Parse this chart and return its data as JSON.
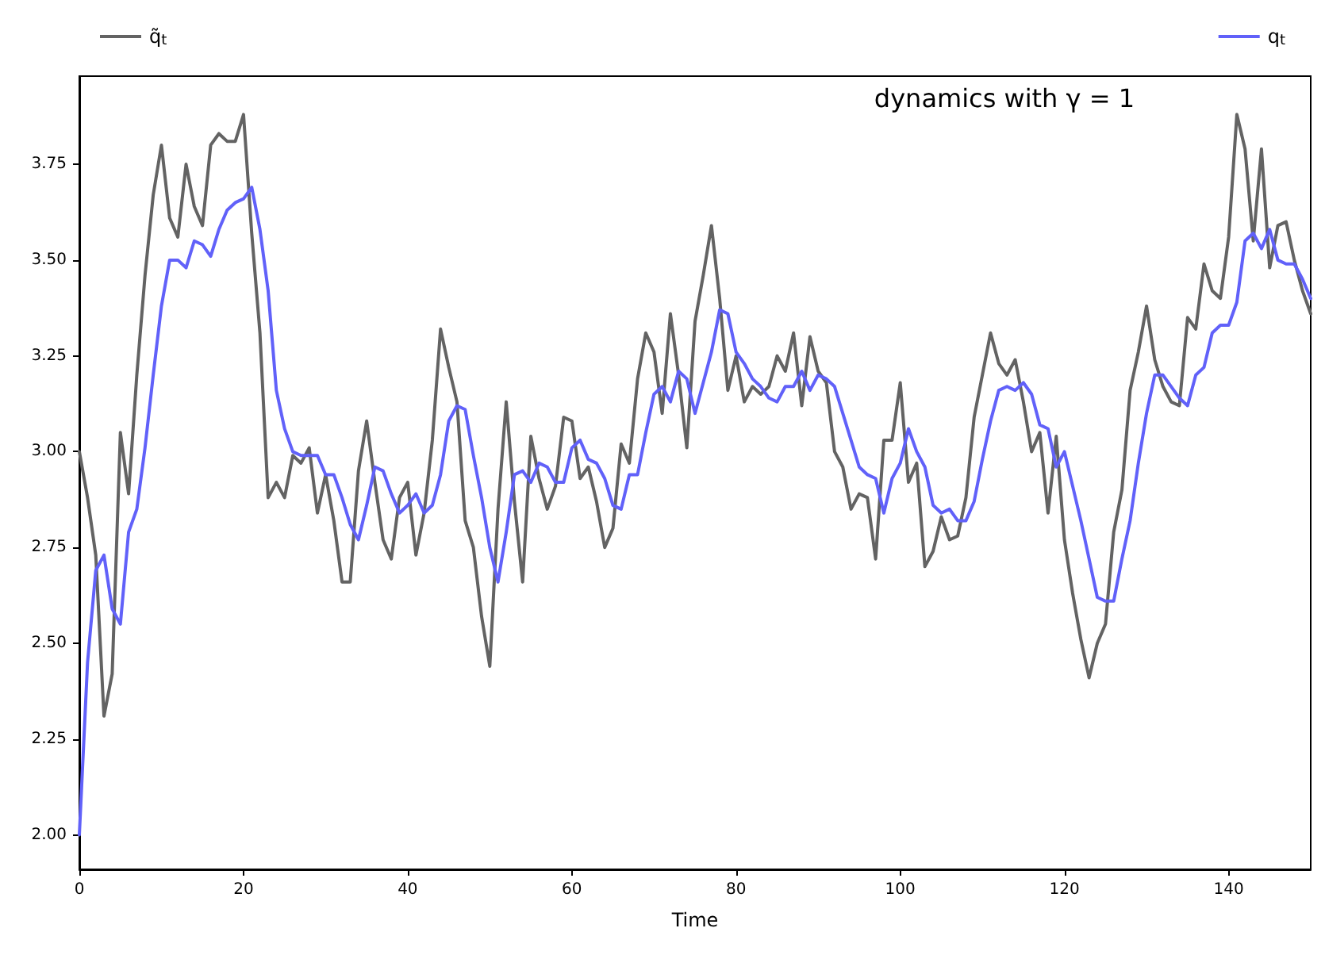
{
  "chart_data": {
    "type": "line",
    "xlabel": "Time",
    "annotations": [
      "dynamics with γ = 1"
    ],
    "x": [
      0,
      1,
      2,
      3,
      4,
      5,
      6,
      7,
      8,
      9,
      10,
      11,
      12,
      13,
      14,
      15,
      16,
      17,
      18,
      19,
      20,
      21,
      22,
      23,
      24,
      25,
      26,
      27,
      28,
      29,
      30,
      31,
      32,
      33,
      34,
      35,
      36,
      37,
      38,
      39,
      40,
      41,
      42,
      43,
      44,
      45,
      46,
      47,
      48,
      49,
      50,
      51,
      52,
      53,
      54,
      55,
      56,
      57,
      58,
      59,
      60,
      61,
      62,
      63,
      64,
      65,
      66,
      67,
      68,
      69,
      70,
      71,
      72,
      73,
      74,
      75,
      76,
      77,
      78,
      79,
      80,
      81,
      82,
      83,
      84,
      85,
      86,
      87,
      88,
      89,
      90,
      91,
      92,
      93,
      94,
      95,
      96,
      97,
      98,
      99,
      100,
      101,
      102,
      103,
      104,
      105,
      106,
      107,
      108,
      109,
      110,
      111,
      112,
      113,
      114,
      115,
      116,
      117,
      118,
      119,
      120,
      121,
      122,
      123,
      124,
      125,
      126,
      127,
      128,
      129,
      130,
      131,
      132,
      133,
      134,
      135,
      136,
      137,
      138,
      139,
      140,
      141,
      142,
      143,
      144,
      145,
      146,
      147,
      148,
      149,
      150
    ],
    "series": [
      {
        "name": "q̃$_{t}$",
        "color": "#636363",
        "values": [
          3.0,
          2.88,
          2.73,
          2.31,
          2.42,
          3.05,
          2.89,
          3.2,
          3.46,
          3.67,
          3.8,
          3.61,
          3.56,
          3.75,
          3.64,
          3.59,
          3.8,
          3.83,
          3.81,
          3.81,
          3.88,
          3.57,
          3.31,
          2.88,
          2.92,
          2.88,
          2.99,
          2.97,
          3.01,
          2.84,
          2.94,
          2.82,
          2.66,
          2.66,
          2.95,
          3.08,
          2.92,
          2.77,
          2.72,
          2.88,
          2.92,
          2.73,
          2.84,
          3.03,
          3.32,
          3.22,
          3.13,
          2.82,
          2.75,
          2.57,
          2.44,
          2.85,
          3.13,
          2.87,
          2.66,
          3.04,
          2.93,
          2.85,
          2.91,
          3.09,
          3.08,
          2.93,
          2.96,
          2.87,
          2.75,
          2.8,
          3.02,
          2.97,
          3.19,
          3.31,
          3.26,
          3.1,
          3.36,
          3.2,
          3.01,
          3.34,
          3.46,
          3.59,
          3.4,
          3.16,
          3.25,
          3.13,
          3.17,
          3.15,
          3.17,
          3.25,
          3.21,
          3.31,
          3.12,
          3.3,
          3.21,
          3.18,
          3.0,
          2.96,
          2.85,
          2.89,
          2.88,
          2.72,
          3.03,
          3.03,
          3.18,
          2.92,
          2.97,
          2.7,
          2.74,
          2.83,
          2.77,
          2.78,
          2.88,
          3.09,
          3.2,
          3.31,
          3.23,
          3.2,
          3.24,
          3.13,
          3.0,
          3.05,
          2.84,
          3.04,
          2.77,
          2.63,
          2.51,
          2.41,
          2.5,
          2.55,
          2.79,
          2.9,
          3.16,
          3.26,
          3.38,
          3.24,
          3.17,
          3.13,
          3.12,
          3.35,
          3.32,
          3.49,
          3.42,
          3.4,
          3.56,
          3.88,
          3.79,
          3.55,
          3.79,
          3.48,
          3.59,
          3.6,
          3.5,
          3.42,
          3.36
        ]
      },
      {
        "name": "q$_{t}$",
        "color": "#6161f9",
        "values": [
          2.0,
          2.45,
          2.69,
          2.73,
          2.59,
          2.55,
          2.79,
          2.85,
          3.01,
          3.2,
          3.38,
          3.5,
          3.5,
          3.48,
          3.55,
          3.54,
          3.51,
          3.58,
          3.63,
          3.65,
          3.66,
          3.69,
          3.58,
          3.42,
          3.16,
          3.06,
          3.0,
          2.99,
          2.99,
          2.99,
          2.94,
          2.94,
          2.88,
          2.81,
          2.77,
          2.86,
          2.96,
          2.95,
          2.89,
          2.84,
          2.86,
          2.89,
          2.84,
          2.86,
          2.94,
          3.08,
          3.12,
          3.11,
          2.99,
          2.88,
          2.75,
          2.66,
          2.79,
          2.94,
          2.95,
          2.92,
          2.97,
          2.96,
          2.92,
          2.92,
          3.01,
          3.03,
          2.98,
          2.97,
          2.93,
          2.86,
          2.85,
          2.94,
          2.94,
          3.05,
          3.15,
          3.17,
          3.13,
          3.21,
          3.19,
          3.1,
          3.18,
          3.26,
          3.37,
          3.36,
          3.26,
          3.23,
          3.19,
          3.17,
          3.14,
          3.13,
          3.17,
          3.17,
          3.21,
          3.16,
          3.2,
          3.19,
          3.17,
          3.1,
          3.03,
          2.96,
          2.94,
          2.93,
          2.84,
          2.93,
          2.97,
          3.06,
          3.0,
          2.96,
          2.86,
          2.84,
          2.85,
          2.82,
          2.82,
          2.87,
          2.98,
          3.08,
          3.16,
          3.17,
          3.16,
          3.18,
          3.15,
          3.07,
          3.06,
          2.96,
          3.0,
          2.91,
          2.82,
          2.72,
          2.62,
          2.61,
          2.61,
          2.72,
          2.82,
          2.97,
          3.1,
          3.2,
          3.2,
          3.17,
          3.14,
          3.12,
          3.2,
          3.22,
          3.31,
          3.33,
          3.33,
          3.39,
          3.55,
          3.57,
          3.53,
          3.58,
          3.5,
          3.49,
          3.49,
          3.45,
          3.4
        ]
      }
    ],
    "xlim": [
      0,
      150
    ],
    "xticks": [
      0,
      20,
      40,
      60,
      80,
      100,
      120,
      140
    ],
    "ylim": [
      1.91,
      3.98
    ],
    "yticks": [
      {
        "value": 2,
        "label": "2.00"
      },
      {
        "value": 2.25,
        "label": "2.25"
      },
      {
        "value": 2.5,
        "label": "2.50"
      },
      {
        "value": 2.75,
        "label": "2.75"
      },
      {
        "value": 3,
        "label": "3.00"
      },
      {
        "value": 3.25,
        "label": "3.25"
      },
      {
        "value": 3.5,
        "label": "3.50"
      },
      {
        "value": 3.75,
        "label": "3.75"
      }
    ],
    "legend": "top",
    "marker": "none",
    "line_style": "solid",
    "grid": false
  }
}
